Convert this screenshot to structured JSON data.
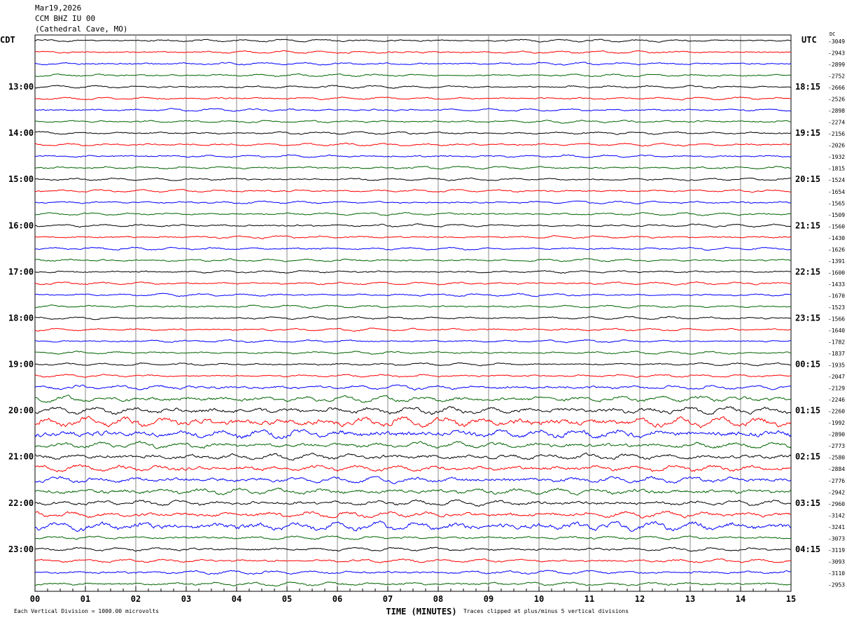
{
  "header": {
    "date": "Mar19,2026",
    "station": "CCM BHZ IU 00",
    "location": "(Cathedral Cave, MO)"
  },
  "chart_data": {
    "type": "line",
    "title": "",
    "left_timezone": "CDT",
    "right_timezone": "UTC",
    "dc_label": "DC",
    "left_hour_labels": [
      "13:00",
      "14:00",
      "15:00",
      "16:00",
      "17:00",
      "18:00",
      "19:00",
      "20:00",
      "21:00",
      "22:00",
      "23:00"
    ],
    "right_hour_labels": [
      "18:15",
      "19:15",
      "20:15",
      "21:15",
      "22:15",
      "23:15",
      "00:15",
      "01:15",
      "02:15",
      "03:15",
      "04:15"
    ],
    "x_ticks": [
      "00",
      "01",
      "02",
      "03",
      "04",
      "05",
      "06",
      "07",
      "08",
      "09",
      "10",
      "11",
      "12",
      "13",
      "14",
      "15"
    ],
    "xlim": [
      0,
      15
    ],
    "xlabel": "TIME (MINUTES)",
    "trace_colors": [
      "#000000",
      "#ff0000",
      "#0000ff",
      "#006400"
    ],
    "dc_offsets": [
      -3049,
      -2943,
      -2899,
      -2752,
      -2666,
      -2526,
      -2898,
      -2274,
      -2156,
      -2026,
      -1932,
      -1815,
      -1524,
      -1654,
      -1565,
      -1509,
      -1560,
      -1430,
      -1626,
      -1391,
      -1600,
      -1433,
      -1670,
      -1523,
      -1566,
      -1640,
      -1782,
      -1837,
      -1935,
      -2047,
      -2129,
      -2246,
      -2260,
      -1992,
      -2890,
      -2773,
      -2580,
      -2884,
      -2776,
      -2942,
      -2960,
      -3142,
      -3241,
      -3073,
      -3119,
      -3093,
      -3110,
      -2953
    ],
    "relative_amplitude_divisions": [
      0.15,
      0.15,
      0.15,
      0.15,
      0.15,
      0.15,
      0.15,
      0.15,
      0.15,
      0.15,
      0.15,
      0.15,
      0.15,
      0.15,
      0.15,
      0.15,
      0.15,
      0.15,
      0.15,
      0.15,
      0.15,
      0.15,
      0.15,
      0.15,
      0.15,
      0.15,
      0.15,
      0.15,
      0.15,
      0.15,
      0.25,
      0.35,
      0.4,
      0.55,
      0.5,
      0.35,
      0.35,
      0.35,
      0.35,
      0.35,
      0.3,
      0.35,
      0.5,
      0.2,
      0.2,
      0.2,
      0.2,
      0.2
    ],
    "grid": true
  },
  "footer": {
    "scale_note": "Each Vertical Division = 1000.00 microvolts",
    "clip_note": "Traces clipped at plus/minus 5 vertical divisions"
  }
}
